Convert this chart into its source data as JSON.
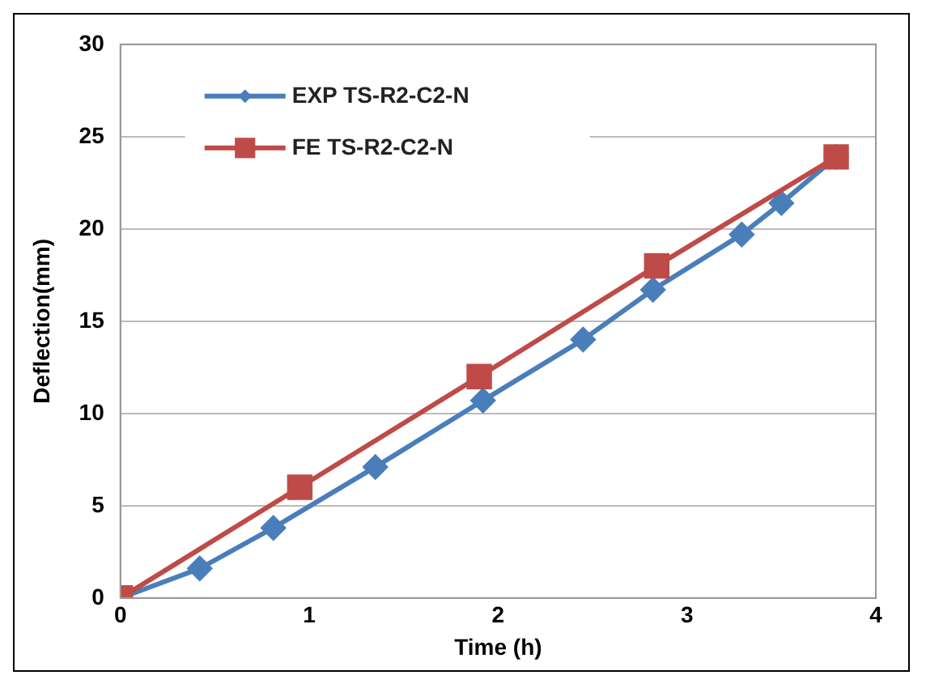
{
  "chart_data": {
    "type": "line",
    "xlabel": "Time (h)",
    "ylabel": "Deflection(mm)",
    "xlim": [
      0,
      4
    ],
    "xticks": [
      0,
      1,
      2,
      3,
      4
    ],
    "ylim": [
      0,
      30
    ],
    "yticks": [
      0,
      5,
      10,
      15,
      20,
      25,
      30
    ],
    "grid": "y",
    "legend": "top left",
    "series": [
      {
        "name": "EXP TS-R2-C2-N",
        "color": "#4a7ebb",
        "marker": "diamond",
        "x": [
          0,
          0.42,
          0.81,
          1.35,
          1.92,
          2.45,
          2.82,
          3.29,
          3.5,
          3.79
        ],
        "values": [
          0,
          1.6,
          3.8,
          7.1,
          10.7,
          14.0,
          16.7,
          19.7,
          21.4,
          23.9
        ]
      },
      {
        "name": "FE TS-R2-C2-N",
        "color": "#be4b48",
        "marker": "square",
        "x": [
          0,
          0.95,
          1.9,
          2.84,
          3.79
        ],
        "values": [
          0,
          6.0,
          12.0,
          18.0,
          23.9
        ]
      }
    ]
  }
}
